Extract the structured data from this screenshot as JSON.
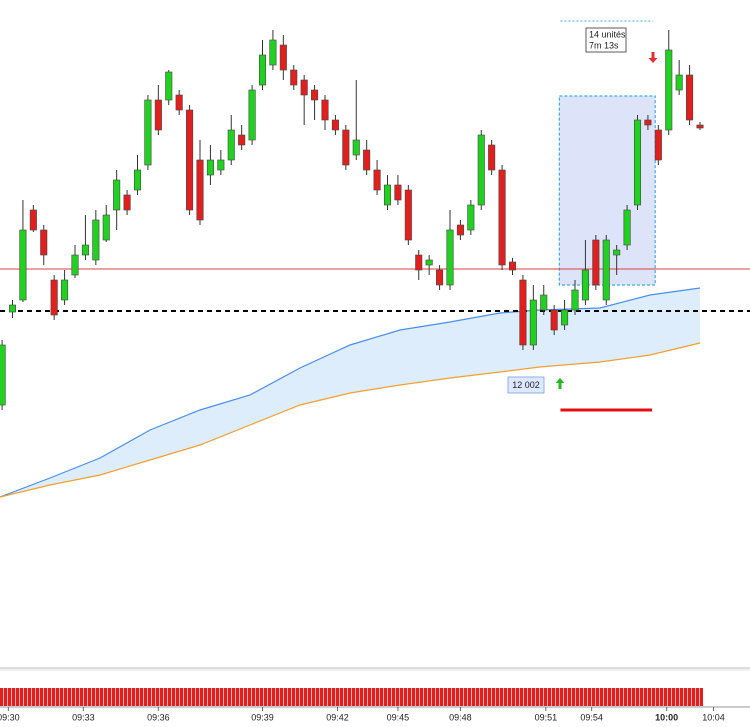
{
  "chart_data": {
    "type": "candlestick",
    "open": [
      260,
      353,
      365,
      455,
      435,
      385,
      365,
      390,
      410,
      405,
      425,
      455,
      470,
      475,
      500,
      565,
      565,
      570,
      555,
      505,
      490,
      495,
      505,
      530,
      525,
      580,
      600,
      620,
      595,
      585,
      575,
      565,
      545,
      535,
      510,
      515,
      495,
      460,
      480,
      475,
      410,
      400,
      395,
      380,
      440,
      435,
      460,
      520,
      495,
      403,
      385,
      320,
      355,
      355,
      340,
      355,
      365,
      425,
      365,
      410,
      420,
      460,
      545,
      535,
      535,
      575,
      590,
      540
    ],
    "high": [
      325,
      365,
      465,
      460,
      440,
      390,
      395,
      420,
      450,
      455,
      460,
      495,
      475,
      510,
      570,
      580,
      595,
      575,
      560,
      525,
      520,
      515,
      550,
      540,
      580,
      625,
      635,
      630,
      600,
      590,
      580,
      570,
      550,
      540,
      585,
      525,
      505,
      490,
      490,
      480,
      415,
      410,
      400,
      455,
      445,
      465,
      535,
      525,
      500,
      407,
      390,
      380,
      380,
      360,
      365,
      385,
      425,
      430,
      430,
      420,
      460,
      550,
      550,
      540,
      635,
      605,
      600,
      543
    ],
    "low": [
      255,
      347,
      363,
      433,
      400,
      345,
      360,
      387,
      405,
      400,
      423,
      435,
      450,
      470,
      495,
      530,
      560,
      550,
      450,
      440,
      480,
      490,
      500,
      515,
      520,
      575,
      595,
      585,
      575,
      540,
      545,
      535,
      530,
      495,
      505,
      490,
      470,
      455,
      460,
      420,
      385,
      390,
      375,
      375,
      425,
      430,
      455,
      490,
      395,
      390,
      315,
      315,
      350,
      330,
      335,
      350,
      360,
      375,
      360,
      390,
      415,
      455,
      535,
      500,
      530,
      570,
      540,
      535
    ],
    "close": [
      320,
      360,
      435,
      435,
      410,
      350,
      385,
      410,
      420,
      445,
      450,
      485,
      455,
      495,
      565,
      535,
      593,
      555,
      455,
      445,
      505,
      505,
      535,
      520,
      575,
      610,
      625,
      595,
      580,
      570,
      565,
      545,
      535,
      500,
      525,
      495,
      475,
      480,
      465,
      425,
      395,
      405,
      380,
      435,
      430,
      460,
      530,
      495,
      400,
      395,
      320,
      365,
      370,
      335,
      355,
      375,
      395,
      380,
      425,
      415,
      455,
      545,
      540,
      505,
      615,
      590,
      545,
      537
    ],
    "up_color": "#22d022",
    "down_color": "#e11f1f",
    "xlim": [
      -0.2,
      71.8
    ],
    "ylim": [
      0,
      665
    ],
    "xticks": [
      {
        "value": 0.6,
        "label": "09:30"
      },
      {
        "value": 7.8,
        "label": "09:33"
      },
      {
        "value": 15.0,
        "label": "09:36"
      },
      {
        "value": 25.0,
        "label": "09:39"
      },
      {
        "value": 32.2,
        "label": "09:42"
      },
      {
        "value": 38.0,
        "label": "09:45"
      },
      {
        "value": 44.0,
        "label": "09:48"
      },
      {
        "value": 52.2,
        "label": "09:51"
      },
      {
        "value": 56.6,
        "label": "09:54"
      },
      {
        "value": 63.8,
        "label": "10:00"
      },
      {
        "value": 68.3,
        "label": "10:04"
      }
    ],
    "overlays": [
      {
        "color": "#4a8fe6",
        "x": [
          -0.2,
          4.6,
          9.4,
          14.2,
          19.0,
          23.8,
          28.6,
          33.4,
          38.2,
          43.0,
          47.8,
          51.6,
          57.4,
          62.2,
          67.0
        ],
        "values": [
          168,
          187,
          207,
          235,
          255,
          270,
          297,
          320,
          335,
          343,
          352,
          355,
          357,
          370,
          377
        ]
      },
      {
        "color": "#f0a030",
        "x": [
          -0.2,
          4.6,
          9.4,
          14.2,
          19.0,
          23.8,
          28.6,
          33.4,
          38.2,
          43.0,
          47.8,
          51.6,
          57.4,
          62.2,
          67.0
        ],
        "values": [
          168,
          180,
          190,
          205,
          220,
          240,
          260,
          272,
          280,
          287,
          293,
          298,
          303,
          310,
          322
        ]
      }
    ],
    "hlines": [
      {
        "value": 396,
        "color": "#d84040",
        "dashed": false
      },
      {
        "value": 354,
        "color": "#000000",
        "dashed": true
      }
    ],
    "zone": {
      "xlim": [
        53.5,
        62.7
      ],
      "ylim": [
        380,
        569
      ]
    },
    "measure_line": {
      "x": [
        53.6,
        62.5
      ],
      "value": 644
    },
    "target_line": {
      "x": [
        53.6,
        62.4
      ],
      "value": 255
    },
    "box_label": [
      "14 unités",
      "7m 13s"
    ],
    "price_label": "12 002"
  }
}
